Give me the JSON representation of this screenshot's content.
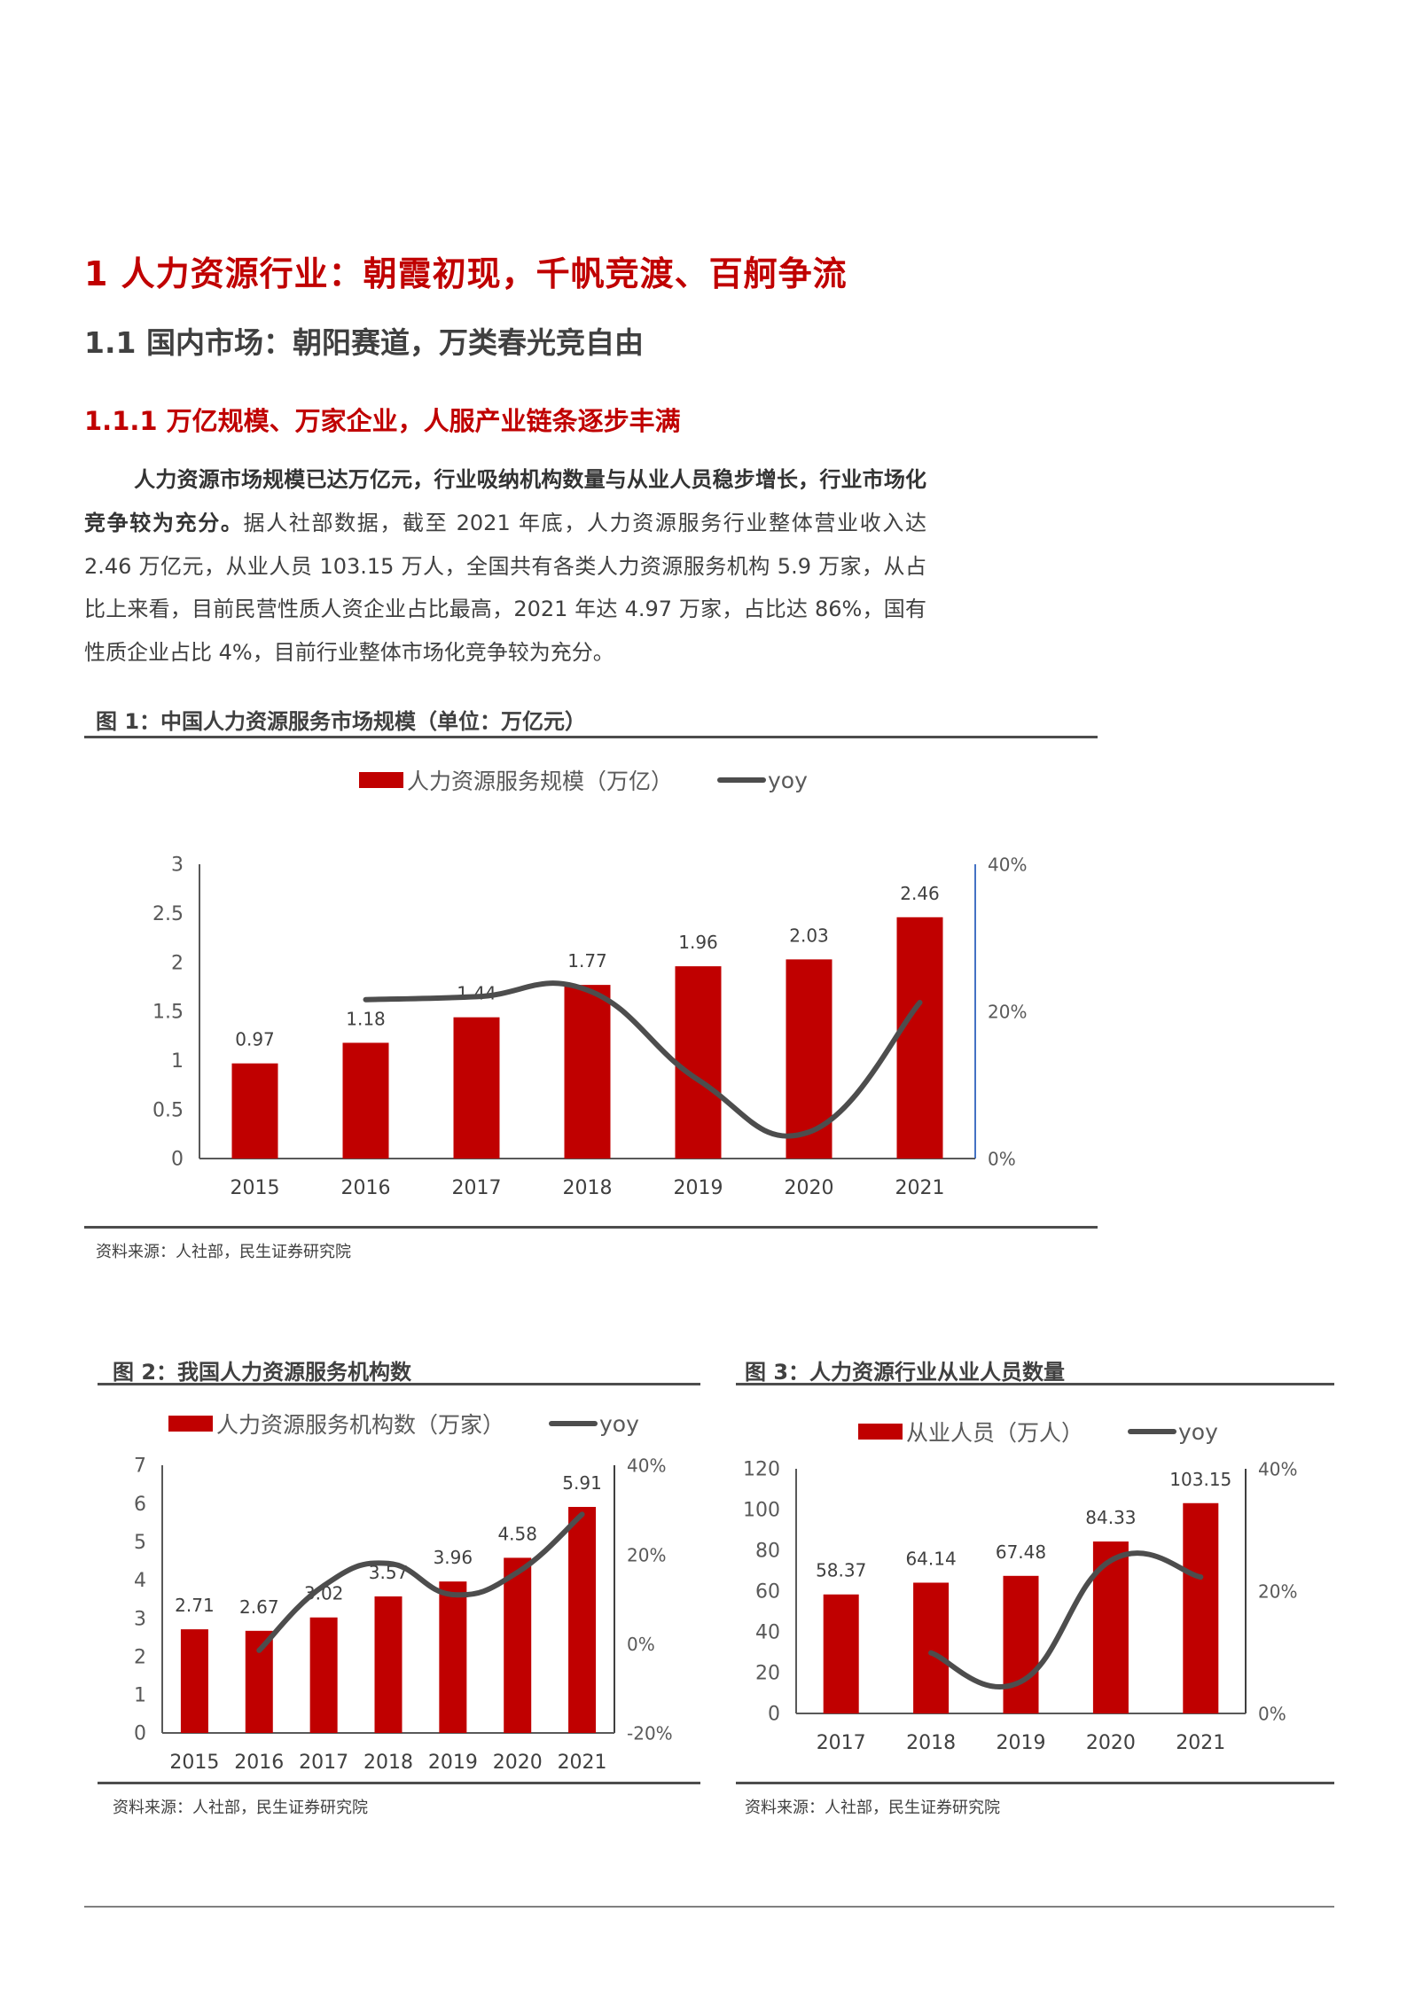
{
  "headings": {
    "h1": "1 人力资源行业：朝霞初现，千帆竞渡、百舸争流",
    "h2": "1.1 国内市场：朝阳赛道，万类春光竞自由",
    "h3": "1.1.1 万亿规模、万家企业，人服产业链条逐步丰满"
  },
  "body": {
    "bold_lead": "人力资源市场规模已达万亿元，行业吸纳机构数量与从业人员稳步增长，行业市场化竞争较为充分。",
    "text": "据人社部数据，截至 2021 年底，人力资源服务行业整体营业收入达 2.46 万亿元，从业人员 103.15 万人，全国共有各类人力资源服务机构 5.9 万家，从占比上来看，目前民营性质人资企业占比最高，2021 年达 4.97 万家，占比达 86%，国有性质企业占比 4%，目前行业整体市场化竞争较为充分。"
  },
  "figures": [
    {
      "title": "图 1：中国人力资源服务市场规模（单位：万亿元）",
      "legend_bar": "人力资源服务规模（万亿）",
      "legend_line": "yoy",
      "source": "资料来源：人社部，民生证券研究院"
    },
    {
      "title": "图 2：我国人力资源服务机构数",
      "legend_bar": "人力资源服务机构数（万家）",
      "legend_line": "yoy",
      "source": "资料来源：人社部，民生证券研究院"
    },
    {
      "title": "图 3：人力资源行业从业人员数量",
      "legend_bar": "从业人员（万人）",
      "legend_line": "yoy",
      "source": "资料来源：人社部，民生证券研究院"
    }
  ],
  "colors": {
    "bar": "#c00000",
    "line": "#4d4d4d",
    "heading_red": "#c00000",
    "text": "#404040"
  },
  "chart_data": [
    {
      "type": "bar",
      "title": "图 1：中国人力资源服务市场规模（单位：万亿元）",
      "categories": [
        "2015",
        "2016",
        "2017",
        "2018",
        "2019",
        "2020",
        "2021"
      ],
      "series": [
        {
          "name": "人力资源服务规模（万亿）",
          "type": "bar",
          "axis": "left",
          "values": [
            0.97,
            1.18,
            1.44,
            1.77,
            1.96,
            2.03,
            2.46
          ]
        },
        {
          "name": "yoy",
          "type": "line",
          "axis": "right",
          "values": [
            null,
            0.216,
            0.22,
            0.229,
            0.107,
            0.036,
            0.212
          ]
        }
      ],
      "ylim": [
        0,
        3
      ],
      "yticks": [
        "0",
        "0.5",
        "1",
        "1.5",
        "2",
        "2.5",
        "3"
      ],
      "y2lim": [
        0,
        0.4
      ],
      "y2ticks": [
        "0%",
        "20%",
        "40%"
      ],
      "legend_position": "top",
      "grid": false,
      "xlabel": "",
      "ylabel": ""
    },
    {
      "type": "bar",
      "title": "图 2：我国人力资源服务机构数",
      "categories": [
        "2015",
        "2016",
        "2017",
        "2018",
        "2019",
        "2020",
        "2021"
      ],
      "series": [
        {
          "name": "人力资源服务机构数（万家）",
          "type": "bar",
          "axis": "left",
          "values": [
            2.71,
            2.67,
            3.02,
            3.57,
            3.96,
            4.58,
            5.91
          ]
        },
        {
          "name": "yoy",
          "type": "line",
          "axis": "right",
          "values": [
            null,
            -0.015,
            0.13,
            0.18,
            0.11,
            0.16,
            0.29
          ]
        }
      ],
      "ylim": [
        0,
        7
      ],
      "yticks": [
        "0",
        "1",
        "2",
        "3",
        "4",
        "5",
        "6",
        "7"
      ],
      "y2lim": [
        -0.2,
        0.4
      ],
      "y2ticks": [
        "-20%",
        "0%",
        "20%",
        "40%"
      ],
      "legend_position": "top",
      "grid": false,
      "xlabel": "",
      "ylabel": ""
    },
    {
      "type": "bar",
      "title": "图 3：人力资源行业从业人员数量",
      "categories": [
        "2017",
        "2018",
        "2019",
        "2020",
        "2021"
      ],
      "series": [
        {
          "name": "从业人员（万人）",
          "type": "bar",
          "axis": "left",
          "values": [
            58.37,
            64.14,
            67.48,
            84.33,
            103.15
          ]
        },
        {
          "name": "yoy",
          "type": "line",
          "axis": "right",
          "values": [
            null,
            0.099,
            0.052,
            0.25,
            0.223
          ]
        }
      ],
      "ylim": [
        0,
        120
      ],
      "yticks": [
        "0",
        "20",
        "40",
        "60",
        "80",
        "100",
        "120"
      ],
      "y2lim": [
        0,
        0.4
      ],
      "y2ticks": [
        "0%",
        "20%",
        "40%"
      ],
      "legend_position": "top",
      "grid": false,
      "xlabel": "",
      "ylabel": ""
    }
  ]
}
